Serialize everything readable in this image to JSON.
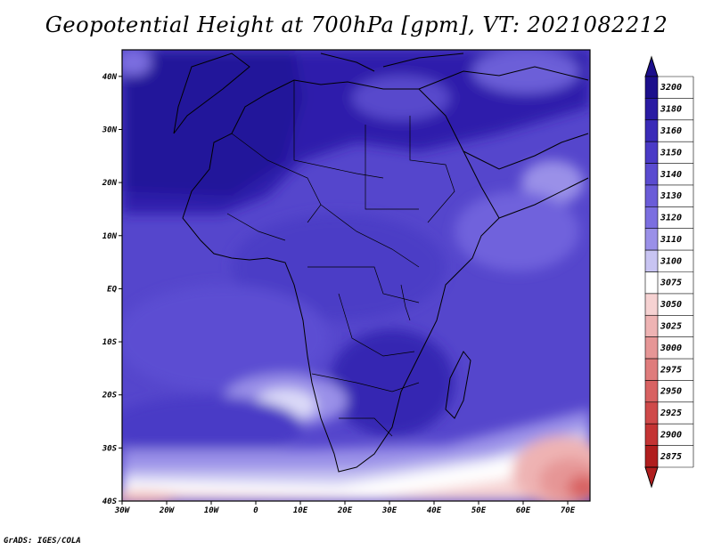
{
  "title": "Geopotential Height at 700hPa [gpm], VT: 2021082212",
  "credit": "GrADS: IGES/COLA",
  "map": {
    "lat_labels": [
      "40N",
      "30N",
      "20N",
      "10N",
      "EQ",
      "10S",
      "20S",
      "30S",
      "40S"
    ],
    "lon_labels": [
      "30W",
      "20W",
      "10W",
      "0",
      "10E",
      "20E",
      "30E",
      "40E",
      "50E",
      "60E",
      "70E"
    ],
    "lon_range": [
      -30,
      75
    ],
    "lat_range": [
      -40,
      45
    ]
  },
  "colorbar": {
    "levels": [
      "3200",
      "3180",
      "3160",
      "3150",
      "3140",
      "3130",
      "3120",
      "3110",
      "3100",
      "3075",
      "3050",
      "3025",
      "3000",
      "2975",
      "2950",
      "2925",
      "2900",
      "2875"
    ],
    "colors": [
      "#1c0f8c",
      "#2a1ba3",
      "#3a2bb8",
      "#4a3ac6",
      "#5a4bd0",
      "#6a5cd8",
      "#7b6ee0",
      "#9a90e8",
      "#c8c4f2",
      "#ffffff",
      "#f6d2d2",
      "#eeb3b3",
      "#e69696",
      "#df7c7c",
      "#d86262",
      "#cf4a4a",
      "#c43434",
      "#b01e1e"
    ]
  }
}
